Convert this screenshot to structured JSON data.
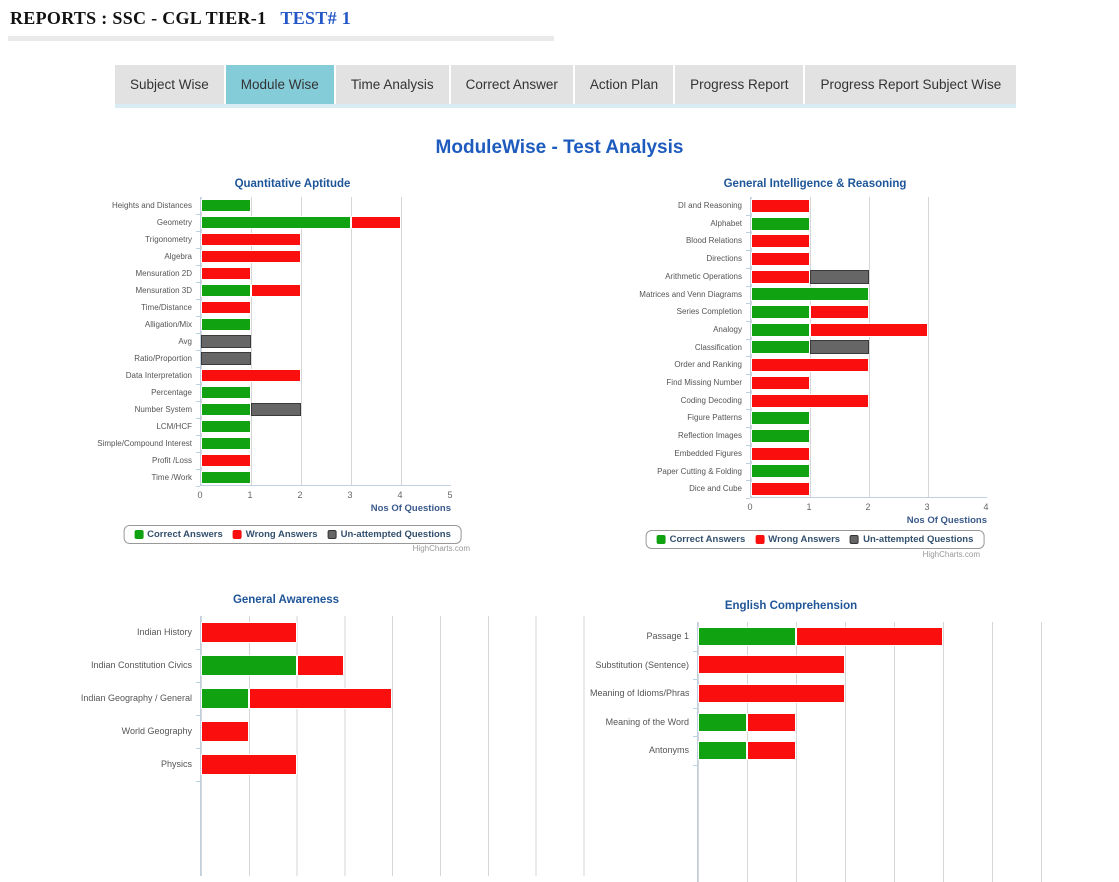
{
  "header": {
    "title": "REPORTS : SSC - CGL TIER-1",
    "test_label": "TEST# 1"
  },
  "tabs": {
    "items": [
      "Subject Wise",
      "Module Wise",
      "Time Analysis",
      "Correct Answer",
      "Action Plan",
      "Progress Report",
      "Progress Report Subject Wise"
    ],
    "active": "Module Wise"
  },
  "page_title": "ModuleWise - Test Analysis",
  "legend": {
    "items": [
      {
        "label": "Correct Answers",
        "color": "#11a211"
      },
      {
        "label": "Wrong Answers",
        "color": "#fb0e0e"
      },
      {
        "label": "Un-attempted Questions",
        "color": "#666666"
      }
    ],
    "position": "bottom"
  },
  "credits": "HighCharts.com",
  "colors": {
    "correct": "#11a211",
    "wrong": "#fb0e0e",
    "unattempted": "#666666",
    "tab_active_bg": "#85ccd9",
    "page_title_blue": "#1e5bbf",
    "chart_title_blue": "#1f5599"
  },
  "chart_data": [
    {
      "type": "bar",
      "orientation": "horizontal",
      "stacked": true,
      "grid": true,
      "title": "Quantitative Aptitude",
      "xlabel": "Nos Of Questions",
      "xlim": [
        0,
        5
      ],
      "xticks": [
        0,
        1,
        2,
        3,
        4,
        5
      ],
      "categories": [
        "Heights and Distances",
        "Geometry",
        "Trigonometry",
        "Algebra",
        "Mensuration 2D",
        "Mensuration 3D",
        "Time/Distance",
        "Alligation/Mix",
        "Avg",
        "Ratio/Proportion",
        "Data Interpretation",
        "Percentage",
        "Number System",
        "LCM/HCF",
        "Simple/Compound Interest",
        "Profit /Loss",
        "Time /Work"
      ],
      "series": [
        {
          "name": "Correct Answers",
          "color": "#11a211",
          "values": [
            1,
            3,
            0,
            0,
            0,
            1,
            0,
            1,
            0,
            0,
            0,
            1,
            1,
            1,
            1,
            0,
            1
          ]
        },
        {
          "name": "Wrong Answers",
          "color": "#fb0e0e",
          "values": [
            0,
            1,
            2,
            2,
            1,
            1,
            1,
            0,
            0,
            0,
            2,
            0,
            0,
            0,
            0,
            1,
            0
          ]
        },
        {
          "name": "Un-attempted Questions",
          "color": "#666666",
          "values": [
            0,
            0,
            0,
            0,
            0,
            0,
            0,
            0,
            1,
            1,
            0,
            0,
            1,
            0,
            0,
            0,
            0
          ]
        }
      ]
    },
    {
      "type": "bar",
      "orientation": "horizontal",
      "stacked": true,
      "grid": true,
      "title": "General Intelligence & Reasoning",
      "xlabel": "Nos Of Questions",
      "xlim": [
        0,
        4
      ],
      "xticks": [
        0,
        1,
        2,
        3,
        4
      ],
      "categories": [
        "DI and Reasoning",
        "Alphabet",
        "Blood Relations",
        "Directions",
        "Arithmetic Operations",
        "Matrices and Venn Diagrams",
        "Series Completion",
        "Analogy",
        "Classification",
        "Order and Ranking",
        "Find Missing Number",
        "Coding Decoding",
        "Figure Patterns",
        "Reflection Images",
        "Embedded Figures",
        "Paper Cutting & Folding",
        "Dice and Cube"
      ],
      "series": [
        {
          "name": "Correct Answers",
          "color": "#11a211",
          "values": [
            0,
            1,
            0,
            0,
            0,
            2,
            1,
            1,
            1,
            0,
            0,
            0,
            1,
            1,
            0,
            1,
            0
          ]
        },
        {
          "name": "Wrong Answers",
          "color": "#fb0e0e",
          "values": [
            1,
            0,
            1,
            1,
            1,
            0,
            1,
            2,
            0,
            2,
            1,
            2,
            0,
            0,
            1,
            0,
            1
          ]
        },
        {
          "name": "Un-attempted Questions",
          "color": "#666666",
          "values": [
            0,
            0,
            0,
            0,
            1,
            0,
            0,
            0,
            1,
            0,
            0,
            0,
            0,
            0,
            0,
            0,
            0
          ]
        }
      ]
    },
    {
      "type": "bar",
      "orientation": "horizontal",
      "stacked": true,
      "grid": true,
      "title": "General Awareness",
      "xlabel": "",
      "xlim": [
        0,
        9
      ],
      "categories": [
        "Indian History",
        "Indian Constitution Civics",
        "Indian Geography / General",
        "World Geography",
        "Physics"
      ],
      "series": [
        {
          "name": "Correct Answers",
          "color": "#11a211",
          "values": [
            0,
            2,
            1,
            0,
            0
          ]
        },
        {
          "name": "Wrong Answers",
          "color": "#fb0e0e",
          "values": [
            2,
            1,
            3,
            1,
            2
          ]
        },
        {
          "name": "Un-attempted Questions",
          "color": "#666666",
          "values": [
            0,
            0,
            0,
            0,
            0
          ]
        }
      ]
    },
    {
      "type": "bar",
      "orientation": "horizontal",
      "stacked": true,
      "grid": true,
      "title": "English Comprehension",
      "xlabel": "",
      "xlim": [
        0,
        8
      ],
      "categories": [
        "Passage 1",
        "Substitution (Sentence)",
        "Meaning of Idioms/Phrases",
        "Meaning of the Word",
        "Antonyms"
      ],
      "series": [
        {
          "name": "Correct Answers",
          "color": "#11a211",
          "values": [
            2,
            0,
            0,
            1,
            1
          ]
        },
        {
          "name": "Wrong Answers",
          "color": "#fb0e0e",
          "values": [
            3,
            3,
            3,
            1,
            1
          ]
        },
        {
          "name": "Un-attempted Questions",
          "color": "#666666",
          "values": [
            0,
            0,
            0,
            0,
            0
          ]
        }
      ]
    }
  ]
}
